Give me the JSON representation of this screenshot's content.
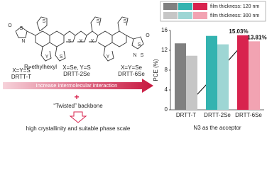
{
  "chart_data": {
    "type": "bar",
    "categories": [
      "DRTT-T",
      "DRTT-2Se",
      "DRTT-6Se"
    ],
    "x_label": "N3 as the acceptor",
    "y_label": "PCE (%)",
    "ylim": [
      0,
      16
    ],
    "yticks": [
      0,
      4,
      8,
      12,
      16
    ],
    "series": [
      {
        "name": "film thickness: 120 nm",
        "color": [
          "#808080",
          "#33b3b0",
          "#d8234e"
        ],
        "values": [
          13.4,
          14.9,
          15.03
        ],
        "value_labels": [
          null,
          null,
          "15.03%"
        ]
      },
      {
        "name": "film thickness: 300 nm",
        "color": [
          "#c6c6c6",
          "#9ed6d4",
          "#f2a3b2"
        ],
        "values": [
          10.9,
          13.2,
          13.81
        ],
        "value_labels": [
          null,
          null,
          "13.81%"
        ]
      }
    ]
  },
  "molecule": {
    "r_group": "R=ethylhexyl",
    "atoms": [
      "S",
      "N",
      "O",
      "S",
      "S",
      "S",
      "Y",
      "X",
      "X",
      "Y",
      "S",
      "S",
      "S",
      "O",
      "N",
      "S"
    ]
  },
  "variants": [
    {
      "atoms": "X=Y=S",
      "name": "DRTT-T"
    },
    {
      "atoms": "X=Se, Y=S",
      "name": "DRTT-2Se"
    },
    {
      "atoms": "X=Y=Se",
      "name": "DRTT-6Se"
    }
  ],
  "notes": {
    "arrow": "Increase intermolecular interaction",
    "plus": "+",
    "backbone": "“Twisted” backbone",
    "result": "high crystallinity and suitable phase scale"
  }
}
